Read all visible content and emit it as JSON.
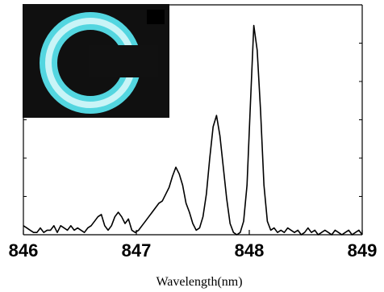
{
  "chart_data": {
    "type": "line",
    "title": "",
    "xlabel": "Wavelength(nm)",
    "ylabel": "",
    "xlim": [
      846,
      849
    ],
    "ylim": [
      0,
      1.0
    ],
    "x_ticks": [
      846,
      847,
      848,
      849
    ],
    "x_tick_labels": [
      "846",
      "847",
      "848",
      "849"
    ],
    "grid": false,
    "legend": "none",
    "line_color": "#000000",
    "inset": {
      "description_colors": {
        "background": "#101010",
        "ring": "#53d6e0",
        "ring_core": "#c9f4f7",
        "gap": "#111111"
      }
    },
    "series": [
      {
        "x": [
          846.0,
          846.03,
          846.06,
          846.09,
          846.12,
          846.15,
          846.18,
          846.21,
          846.24,
          846.27,
          846.3,
          846.33,
          846.36,
          846.39,
          846.42,
          846.45,
          846.48,
          846.51,
          846.54,
          846.57,
          846.6,
          846.63,
          846.66,
          846.69,
          846.72,
          846.75,
          846.78,
          846.81,
          846.84,
          846.87,
          846.9,
          846.93,
          846.96,
          846.99,
          847.02,
          847.05,
          847.08,
          847.11,
          847.14,
          847.17,
          847.2,
          847.23,
          847.26,
          847.29,
          847.32,
          847.35,
          847.38,
          847.41,
          847.44,
          847.47,
          847.5,
          847.53,
          847.56,
          847.59,
          847.62,
          847.65,
          847.68,
          847.71,
          847.74,
          847.77,
          847.8,
          847.83,
          847.86,
          847.89,
          847.92,
          847.95,
          847.98,
          848.01,
          848.04,
          848.07,
          848.1,
          848.13,
          848.16,
          848.19,
          848.22,
          848.25,
          848.28,
          848.31,
          848.34,
          848.37,
          848.4,
          848.43,
          848.46,
          848.49,
          848.52,
          848.55,
          848.58,
          848.61,
          848.64,
          848.67,
          848.7,
          848.73,
          848.76,
          848.79,
          848.82,
          848.85,
          848.88,
          848.91,
          848.94,
          848.97,
          849.0
        ],
        "y": [
          0.04,
          0.03,
          0.02,
          0.01,
          0.01,
          0.03,
          0.01,
          0.02,
          0.02,
          0.04,
          0.01,
          0.04,
          0.03,
          0.02,
          0.04,
          0.02,
          0.03,
          0.02,
          0.01,
          0.03,
          0.04,
          0.06,
          0.08,
          0.09,
          0.04,
          0.02,
          0.04,
          0.08,
          0.1,
          0.08,
          0.05,
          0.07,
          0.02,
          0.01,
          0.02,
          0.04,
          0.06,
          0.08,
          0.1,
          0.12,
          0.14,
          0.15,
          0.18,
          0.21,
          0.26,
          0.3,
          0.27,
          0.22,
          0.14,
          0.1,
          0.05,
          0.02,
          0.03,
          0.08,
          0.18,
          0.34,
          0.48,
          0.53,
          0.44,
          0.3,
          0.16,
          0.05,
          0.01,
          0.0,
          0.01,
          0.06,
          0.22,
          0.58,
          0.93,
          0.82,
          0.55,
          0.22,
          0.06,
          0.02,
          0.03,
          0.01,
          0.02,
          0.01,
          0.03,
          0.02,
          0.01,
          0.02,
          0.0,
          0.01,
          0.03,
          0.01,
          0.02,
          0.0,
          0.01,
          0.02,
          0.01,
          0.0,
          0.02,
          0.01,
          0.0,
          0.01,
          0.02,
          0.0,
          0.01,
          0.02,
          0.0
        ]
      }
    ]
  }
}
